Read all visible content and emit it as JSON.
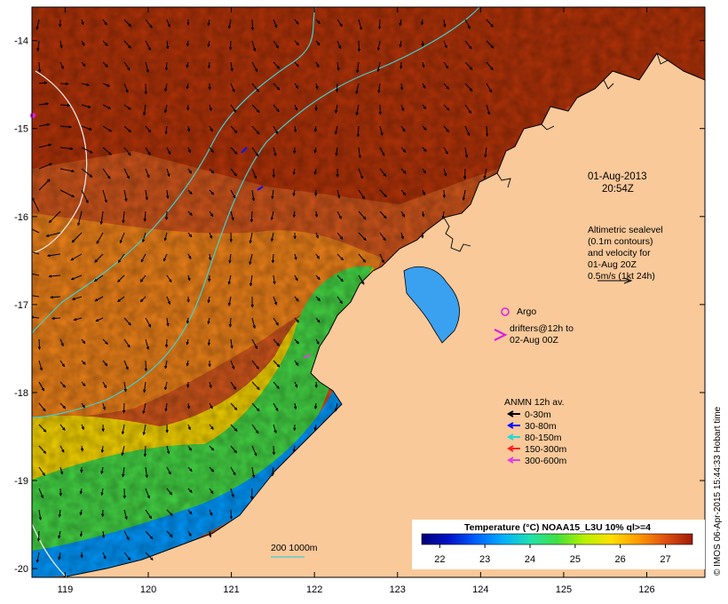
{
  "map": {
    "lon_range": [
      118.6,
      126.7
    ],
    "lat_range": [
      -20.1,
      -13.62
    ],
    "x_ticks": [
      "119",
      "120",
      "121",
      "122",
      "123",
      "124",
      "125",
      "126"
    ],
    "x_tick_values": [
      119,
      120,
      121,
      122,
      123,
      124,
      125,
      126
    ],
    "y_ticks": [
      "-14",
      "-15",
      "-16",
      "-17",
      "-18",
      "-19",
      "-20"
    ],
    "y_tick_values": [
      -14,
      -15,
      -16,
      -17,
      -18,
      -19,
      -20
    ]
  },
  "annotations": {
    "date_line1": "01-Aug-2013",
    "date_line2": "20:54Z",
    "altimetry_lines": [
      "Altimetric sealevel",
      "(0.1m contours)",
      "and velocity for",
      "01-Aug 20Z",
      "0.5m/s (1kt 24h)"
    ],
    "argo_label": "Argo",
    "drifters_lines": [
      "drifters@12h to",
      "02-Aug 00Z"
    ],
    "anmn_title": "ANMN 12h av.",
    "anmn_legend": [
      {
        "label": "0-30m",
        "color": "#000000"
      },
      {
        "label": "30-80m",
        "color": "#1010ff"
      },
      {
        "label": "80-150m",
        "color": "#20d8d8"
      },
      {
        "label": "150-300m",
        "color": "#ff2020"
      },
      {
        "label": "300-600m",
        "color": "#e040e0"
      }
    ],
    "bathy_label": "200  1000m"
  },
  "colorbar": {
    "title": "Temperature (°C) NOAA15_L3U 10% ql>=4",
    "min": 21.6,
    "max": 27.6,
    "ticks": [
      "22",
      "23",
      "24",
      "25",
      "26",
      "27"
    ],
    "tick_values": [
      22,
      23,
      24,
      25,
      26,
      27
    ]
  },
  "credit": "© IMOS 06-Apr-2015 15:44:33 Hobart time",
  "colors": {
    "land": "#f9c99a",
    "sst_warm": "#b23a10",
    "sst_cold": "#081a9a",
    "isobath_200": "#40d0d0",
    "isobath_1000": "#f0f0f0",
    "argo": "#e020e0"
  }
}
